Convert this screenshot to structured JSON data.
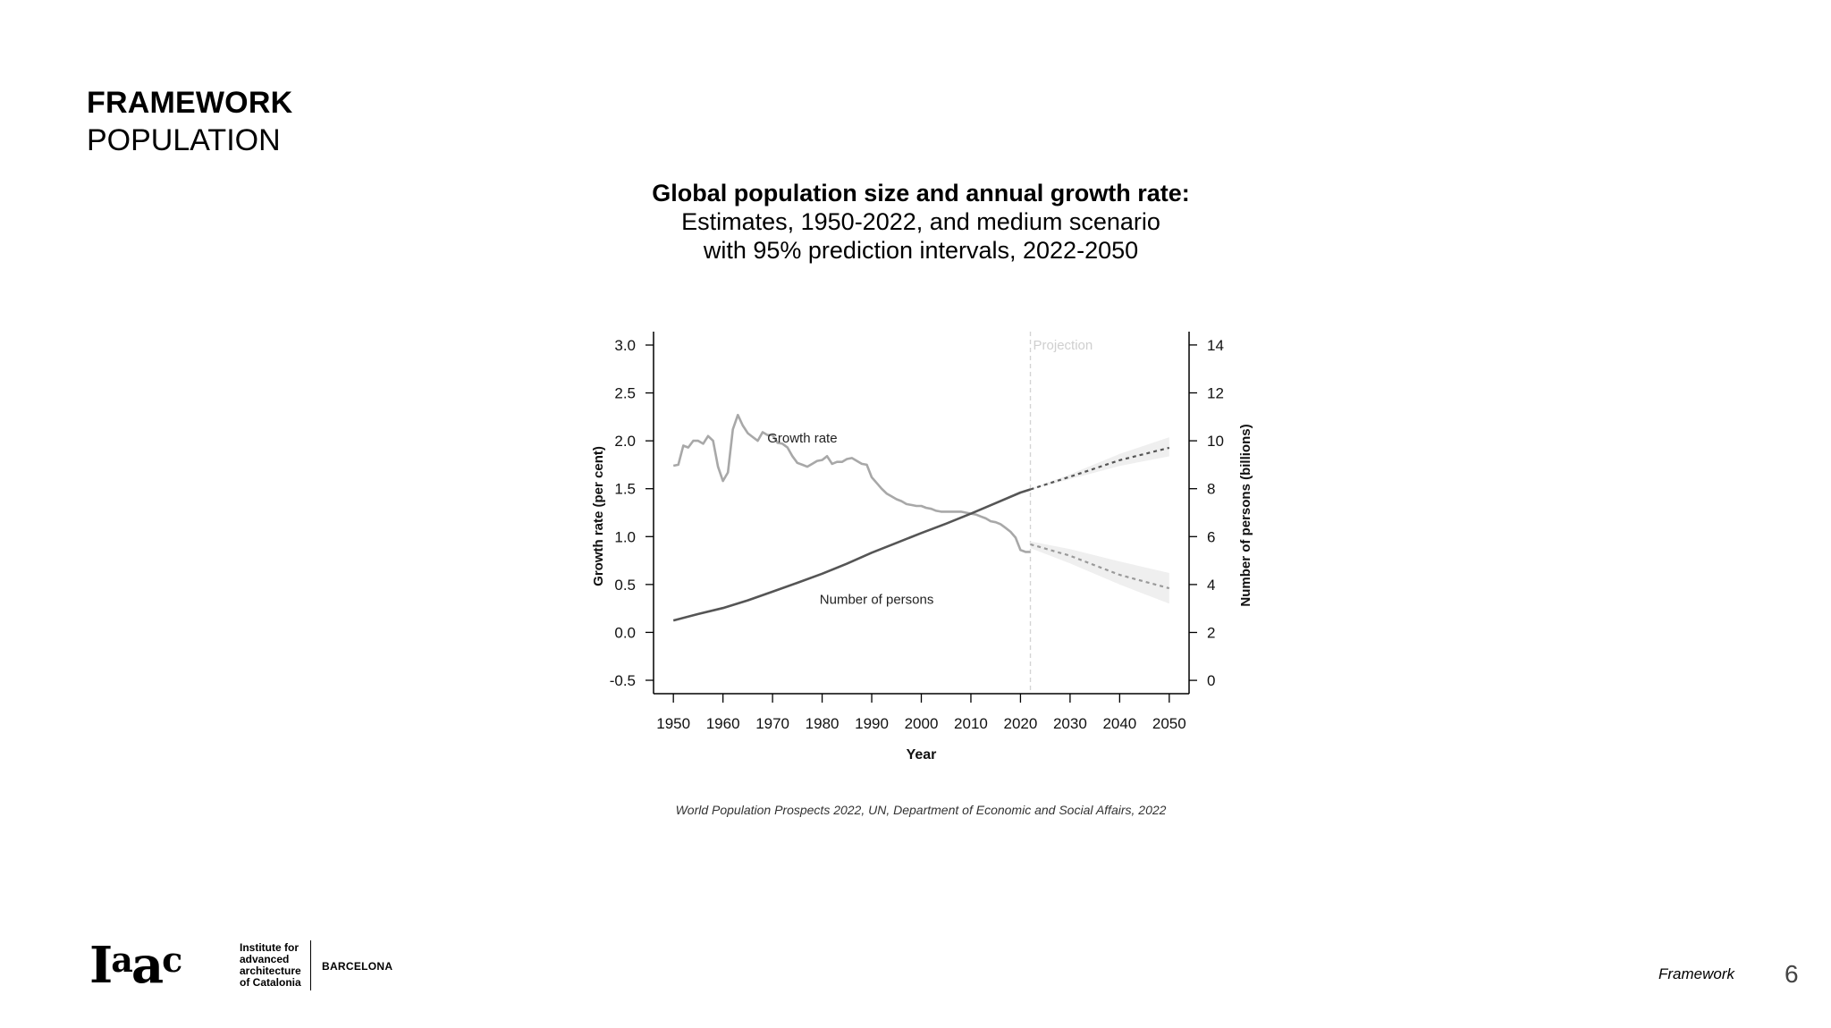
{
  "header": {
    "title": "FRAMEWORK",
    "subtitle": "POPULATION"
  },
  "chart_title": {
    "line1": "Global population size and annual growth rate:",
    "line2": "Estimates, 1950-2022, and medium scenario",
    "line3": "with 95% prediction intervals, 2022-2050"
  },
  "chart_data": {
    "type": "line",
    "xlabel": "Year",
    "ylabel_left": "Growth rate (per cent)",
    "ylabel_right": "Number of persons (billions)",
    "x_ticks": [
      1950,
      1960,
      1970,
      1980,
      1990,
      2000,
      2010,
      2020,
      2030,
      2040,
      2050
    ],
    "y_left_ticks": [
      "-0.5",
      "0.0",
      "0.5",
      "1.0",
      "1.5",
      "2.0",
      "2.5",
      "3.0"
    ],
    "y_right_ticks": [
      "0",
      "2",
      "4",
      "6",
      "8",
      "10",
      "12",
      "14"
    ],
    "xlim": [
      1946,
      2054
    ],
    "ylim_left": [
      -0.64,
      3.14
    ],
    "ylim_right": [
      -0.556,
      14.556
    ],
    "projection_start": 2022,
    "projection_label": "Projection",
    "series": [
      {
        "name": "Growth rate",
        "axis": "left",
        "color": "#a8a8a8",
        "estimates": [
          [
            1950,
            1.74
          ],
          [
            1951,
            1.75
          ],
          [
            1952,
            1.95
          ],
          [
            1953,
            1.93
          ],
          [
            1954,
            2.0
          ],
          [
            1955,
            2.0
          ],
          [
            1956,
            1.97
          ],
          [
            1957,
            2.05
          ],
          [
            1958,
            2.0
          ],
          [
            1959,
            1.73
          ],
          [
            1960,
            1.58
          ],
          [
            1961,
            1.67
          ],
          [
            1962,
            2.12
          ],
          [
            1963,
            2.27
          ],
          [
            1964,
            2.16
          ],
          [
            1965,
            2.08
          ],
          [
            1966,
            2.04
          ],
          [
            1967,
            2.0
          ],
          [
            1968,
            2.09
          ],
          [
            1969,
            2.06
          ],
          [
            1970,
            2.06
          ],
          [
            1971,
            1.98
          ],
          [
            1972,
            1.97
          ],
          [
            1973,
            1.93
          ],
          [
            1974,
            1.84
          ],
          [
            1975,
            1.77
          ],
          [
            1976,
            1.75
          ],
          [
            1977,
            1.73
          ],
          [
            1978,
            1.76
          ],
          [
            1979,
            1.79
          ],
          [
            1980,
            1.8
          ],
          [
            1981,
            1.84
          ],
          [
            1982,
            1.76
          ],
          [
            1983,
            1.78
          ],
          [
            1984,
            1.78
          ],
          [
            1985,
            1.81
          ],
          [
            1986,
            1.82
          ],
          [
            1987,
            1.79
          ],
          [
            1988,
            1.76
          ],
          [
            1989,
            1.75
          ],
          [
            1990,
            1.62
          ],
          [
            1991,
            1.56
          ],
          [
            1992,
            1.5
          ],
          [
            1993,
            1.45
          ],
          [
            1994,
            1.42
          ],
          [
            1995,
            1.39
          ],
          [
            1996,
            1.37
          ],
          [
            1997,
            1.34
          ],
          [
            1998,
            1.33
          ],
          [
            1999,
            1.32
          ],
          [
            2000,
            1.32
          ],
          [
            2001,
            1.3
          ],
          [
            2002,
            1.29
          ],
          [
            2003,
            1.27
          ],
          [
            2004,
            1.26
          ],
          [
            2005,
            1.26
          ],
          [
            2006,
            1.26
          ],
          [
            2007,
            1.26
          ],
          [
            2008,
            1.26
          ],
          [
            2009,
            1.25
          ],
          [
            2010,
            1.24
          ],
          [
            2011,
            1.23
          ],
          [
            2012,
            1.21
          ],
          [
            2013,
            1.19
          ],
          [
            2014,
            1.16
          ],
          [
            2015,
            1.15
          ],
          [
            2016,
            1.13
          ],
          [
            2017,
            1.09
          ],
          [
            2018,
            1.05
          ],
          [
            2019,
            0.99
          ],
          [
            2020,
            0.86
          ],
          [
            2021,
            0.84
          ],
          [
            2022,
            0.84
          ]
        ],
        "projection": [
          [
            2022,
            0.92
          ],
          [
            2030,
            0.8
          ],
          [
            2040,
            0.6
          ],
          [
            2050,
            0.46
          ]
        ],
        "interval_upper": [
          [
            2022,
            0.95
          ],
          [
            2030,
            0.87
          ],
          [
            2040,
            0.74
          ],
          [
            2050,
            0.62
          ]
        ],
        "interval_lower": [
          [
            2022,
            0.88
          ],
          [
            2030,
            0.72
          ],
          [
            2040,
            0.5
          ],
          [
            2050,
            0.3
          ]
        ]
      },
      {
        "name": "Number of persons",
        "axis": "right",
        "color": "#555555",
        "estimates": [
          [
            1950,
            2.5
          ],
          [
            1955,
            2.77
          ],
          [
            1960,
            3.02
          ],
          [
            1965,
            3.34
          ],
          [
            1970,
            3.7
          ],
          [
            1975,
            4.07
          ],
          [
            1980,
            4.45
          ],
          [
            1985,
            4.87
          ],
          [
            1990,
            5.33
          ],
          [
            1995,
            5.74
          ],
          [
            2000,
            6.15
          ],
          [
            2005,
            6.54
          ],
          [
            2010,
            6.96
          ],
          [
            2015,
            7.4
          ],
          [
            2020,
            7.84
          ],
          [
            2022,
            7.97
          ]
        ],
        "projection": [
          [
            2022,
            7.97
          ],
          [
            2030,
            8.5
          ],
          [
            2040,
            9.19
          ],
          [
            2050,
            9.71
          ]
        ],
        "interval_upper": [
          [
            2022,
            8.0
          ],
          [
            2030,
            8.6
          ],
          [
            2040,
            9.45
          ],
          [
            2050,
            10.15
          ]
        ],
        "interval_lower": [
          [
            2022,
            7.95
          ],
          [
            2030,
            8.4
          ],
          [
            2040,
            8.95
          ],
          [
            2050,
            9.35
          ]
        ]
      }
    ]
  },
  "source": "World Population Prospects 2022, UN, Department of Economic and Social Affairs, 2022",
  "logo": {
    "mark": "Iaac",
    "text_lines": [
      "Institute for",
      "advanced",
      "architecture",
      "of Catalonia"
    ],
    "city": "BARCELONA"
  },
  "footer": {
    "label": "Framework",
    "page": "6"
  }
}
